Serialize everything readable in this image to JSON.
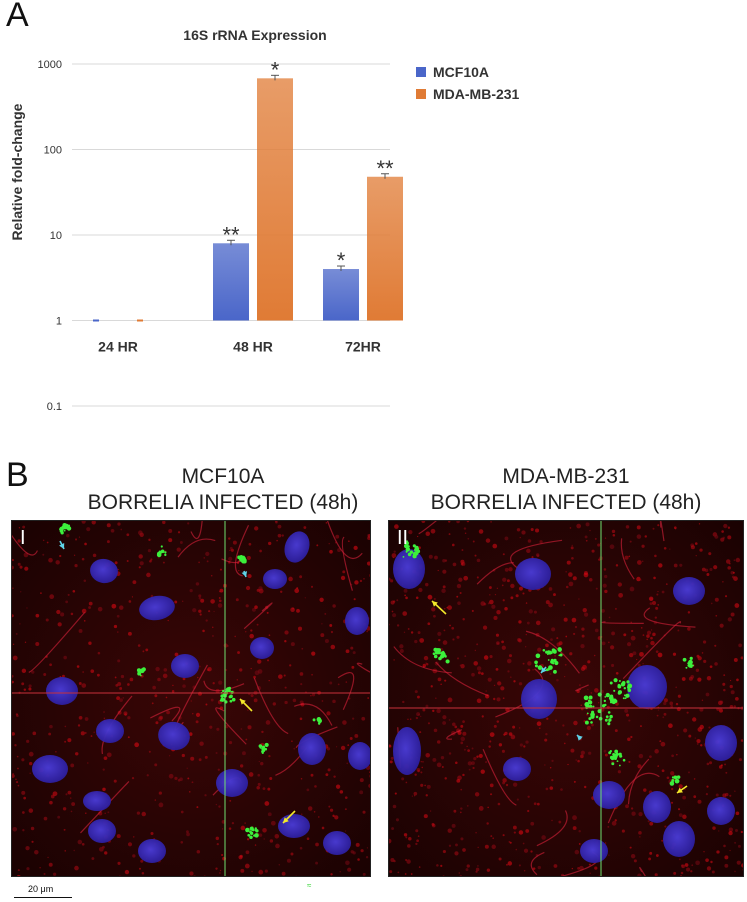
{
  "panel_a_label": "A",
  "panel_b_label": "B",
  "chart_data": {
    "type": "bar",
    "title": "16S rRNA Expression",
    "ylabel": "Relative fold-change",
    "xlabel": "",
    "y_scale": "log",
    "ylim": [
      0.1,
      1000
    ],
    "y_ticks": [
      "0.1",
      "1",
      "10",
      "100",
      "1000"
    ],
    "categories": [
      "24 HR",
      "48 HR",
      "72HR"
    ],
    "series": [
      {
        "name": "MCF10A",
        "color": "#4a66c9",
        "values": [
          1,
          8,
          4
        ],
        "significance": [
          "",
          "**",
          "*"
        ]
      },
      {
        "name": "MDA-MB-231",
        "color": "#e07b35",
        "values": [
          1,
          680,
          48
        ],
        "significance": [
          "",
          "*",
          "**"
        ]
      }
    ],
    "legend_position": "right",
    "grid": true
  },
  "panel_b": {
    "images": [
      {
        "title_line1": "MCF10A",
        "title_line2": "BORRELIA INFECTED (48h)",
        "roman": "I"
      },
      {
        "title_line1": "MDA-MB-231",
        "title_line2": "BORRELIA INFECTED (48h)",
        "roman": "II"
      }
    ],
    "scale_bar_label": "20 μm",
    "stray_glyph": "≈"
  }
}
